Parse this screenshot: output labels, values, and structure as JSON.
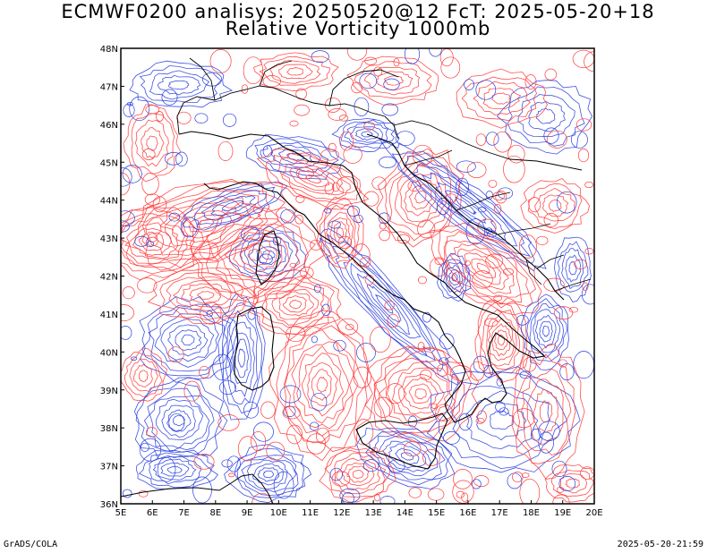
{
  "title": {
    "line1": "ECMWF0200 analisys: 20250520@12 FcT: 2025-05-20+18",
    "line2": "Relative Vorticity 1000mb"
  },
  "footer": {
    "left": "GrADS/COLA",
    "right": "2025-05-20-21:59"
  },
  "map": {
    "lon_range": [
      5,
      20
    ],
    "lat_range": [
      36,
      48
    ],
    "lon_ticks": [
      "5E",
      "6E",
      "7E",
      "8E",
      "9E",
      "10E",
      "11E",
      "12E",
      "13E",
      "14E",
      "15E",
      "16E",
      "17E",
      "18E",
      "19E",
      "20E"
    ],
    "lat_ticks": [
      "36N",
      "37N",
      "38N",
      "39N",
      "40N",
      "41N",
      "42N",
      "43N",
      "44N",
      "45N",
      "46N",
      "47N",
      "48N"
    ],
    "field": "relative vorticity contours",
    "colors": {
      "positive": "#ff3b3b",
      "negative": "#2a3fe0",
      "coastline": "#000000",
      "frame": "#000000"
    }
  }
}
